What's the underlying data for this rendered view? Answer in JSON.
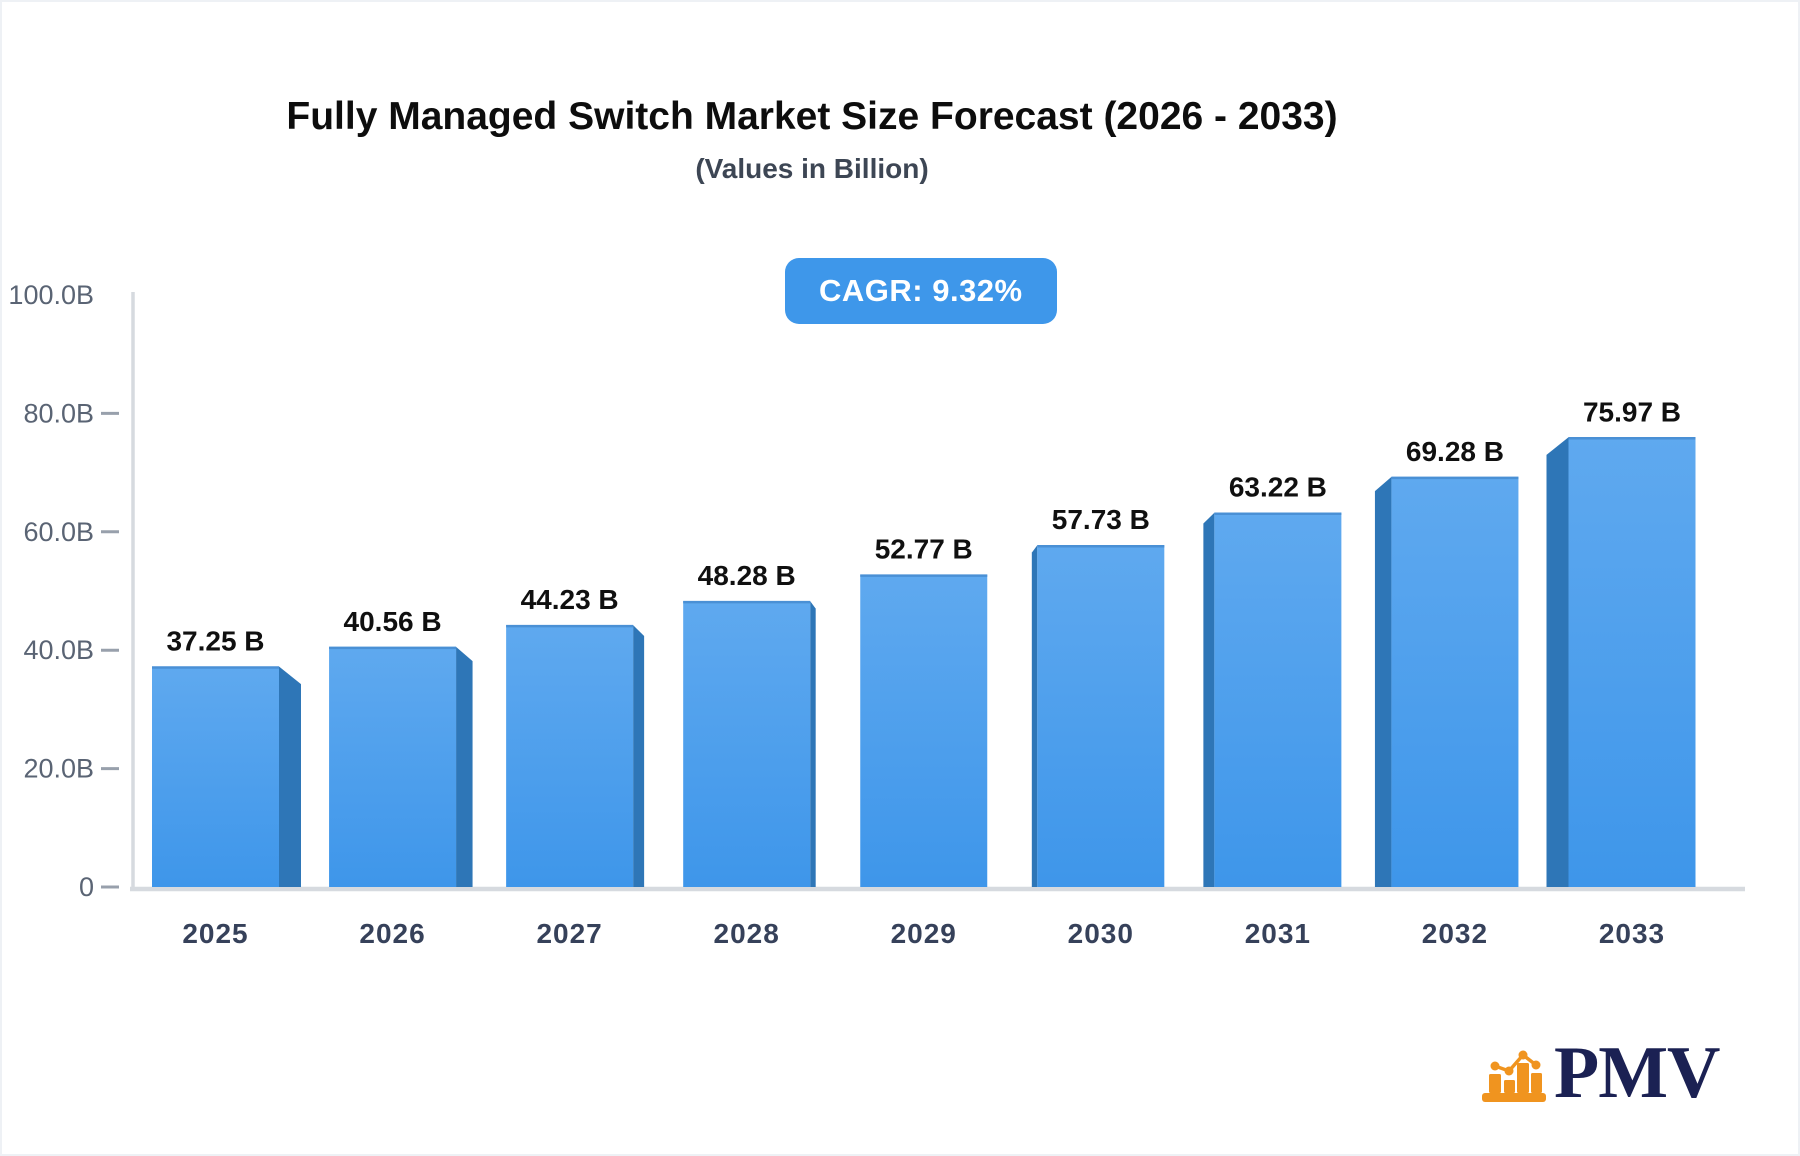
{
  "header": {
    "title": "Fully Managed Switch Market Size Forecast (2026 - 2033)",
    "subtitle": "(Values in Billion)",
    "cagr_badge": "CAGR: 9.32%"
  },
  "chart_data": {
    "type": "bar",
    "title": "Fully Managed Switch Market Size Forecast (2026 - 2033)",
    "subtitle": "(Values in Billion)",
    "cagr_label": "CAGR: 9.32%",
    "cagr_percent": 9.32,
    "unit_suffix": "B",
    "categories": [
      "2025",
      "2026",
      "2027",
      "2028",
      "2029",
      "2030",
      "2031",
      "2032",
      "2033"
    ],
    "values": [
      37.25,
      40.56,
      44.23,
      48.28,
      52.77,
      57.73,
      63.22,
      69.28,
      75.97
    ],
    "bar_labels": [
      "37.25 B",
      "40.56 B",
      "44.23 B",
      "48.28 B",
      "52.77 B",
      "57.73 B",
      "63.22 B",
      "69.28 B",
      "75.97 B"
    ],
    "xlabel": "",
    "ylabel": "",
    "ylim": [
      0,
      100
    ],
    "yticks": [
      {
        "value": 0,
        "label": "0"
      },
      {
        "value": 20,
        "label": "20.0B"
      },
      {
        "value": 40,
        "label": "40.0B"
      },
      {
        "value": 60,
        "label": "60.0B"
      },
      {
        "value": 80,
        "label": "80.0B"
      },
      {
        "value": 100,
        "label": "100.0B"
      }
    ],
    "grid": false,
    "legend_position": "none",
    "bar_style": "3d-perspective-center-vanishing"
  },
  "branding": {
    "logo_text": "PMV"
  },
  "colors": {
    "bar_face_top": "#5fa9ef",
    "bar_face_bottom": "#3e96ea",
    "bar_side": "#2e76b7",
    "bar_top_edge": "#4a90d5",
    "badge_bg": "#3e97ea",
    "badge_text": "#ffffff",
    "axis_line": "#d6dadf",
    "tick_dash": "#98a0ac",
    "ytick_text": "#5a6474",
    "xtick_text": "#36415a",
    "value_text": "#101010",
    "title_text": "#0d0d0d",
    "subtitle_text": "#3d4654",
    "logo_orange": "#f0941f",
    "logo_navy": "#1b2153"
  }
}
